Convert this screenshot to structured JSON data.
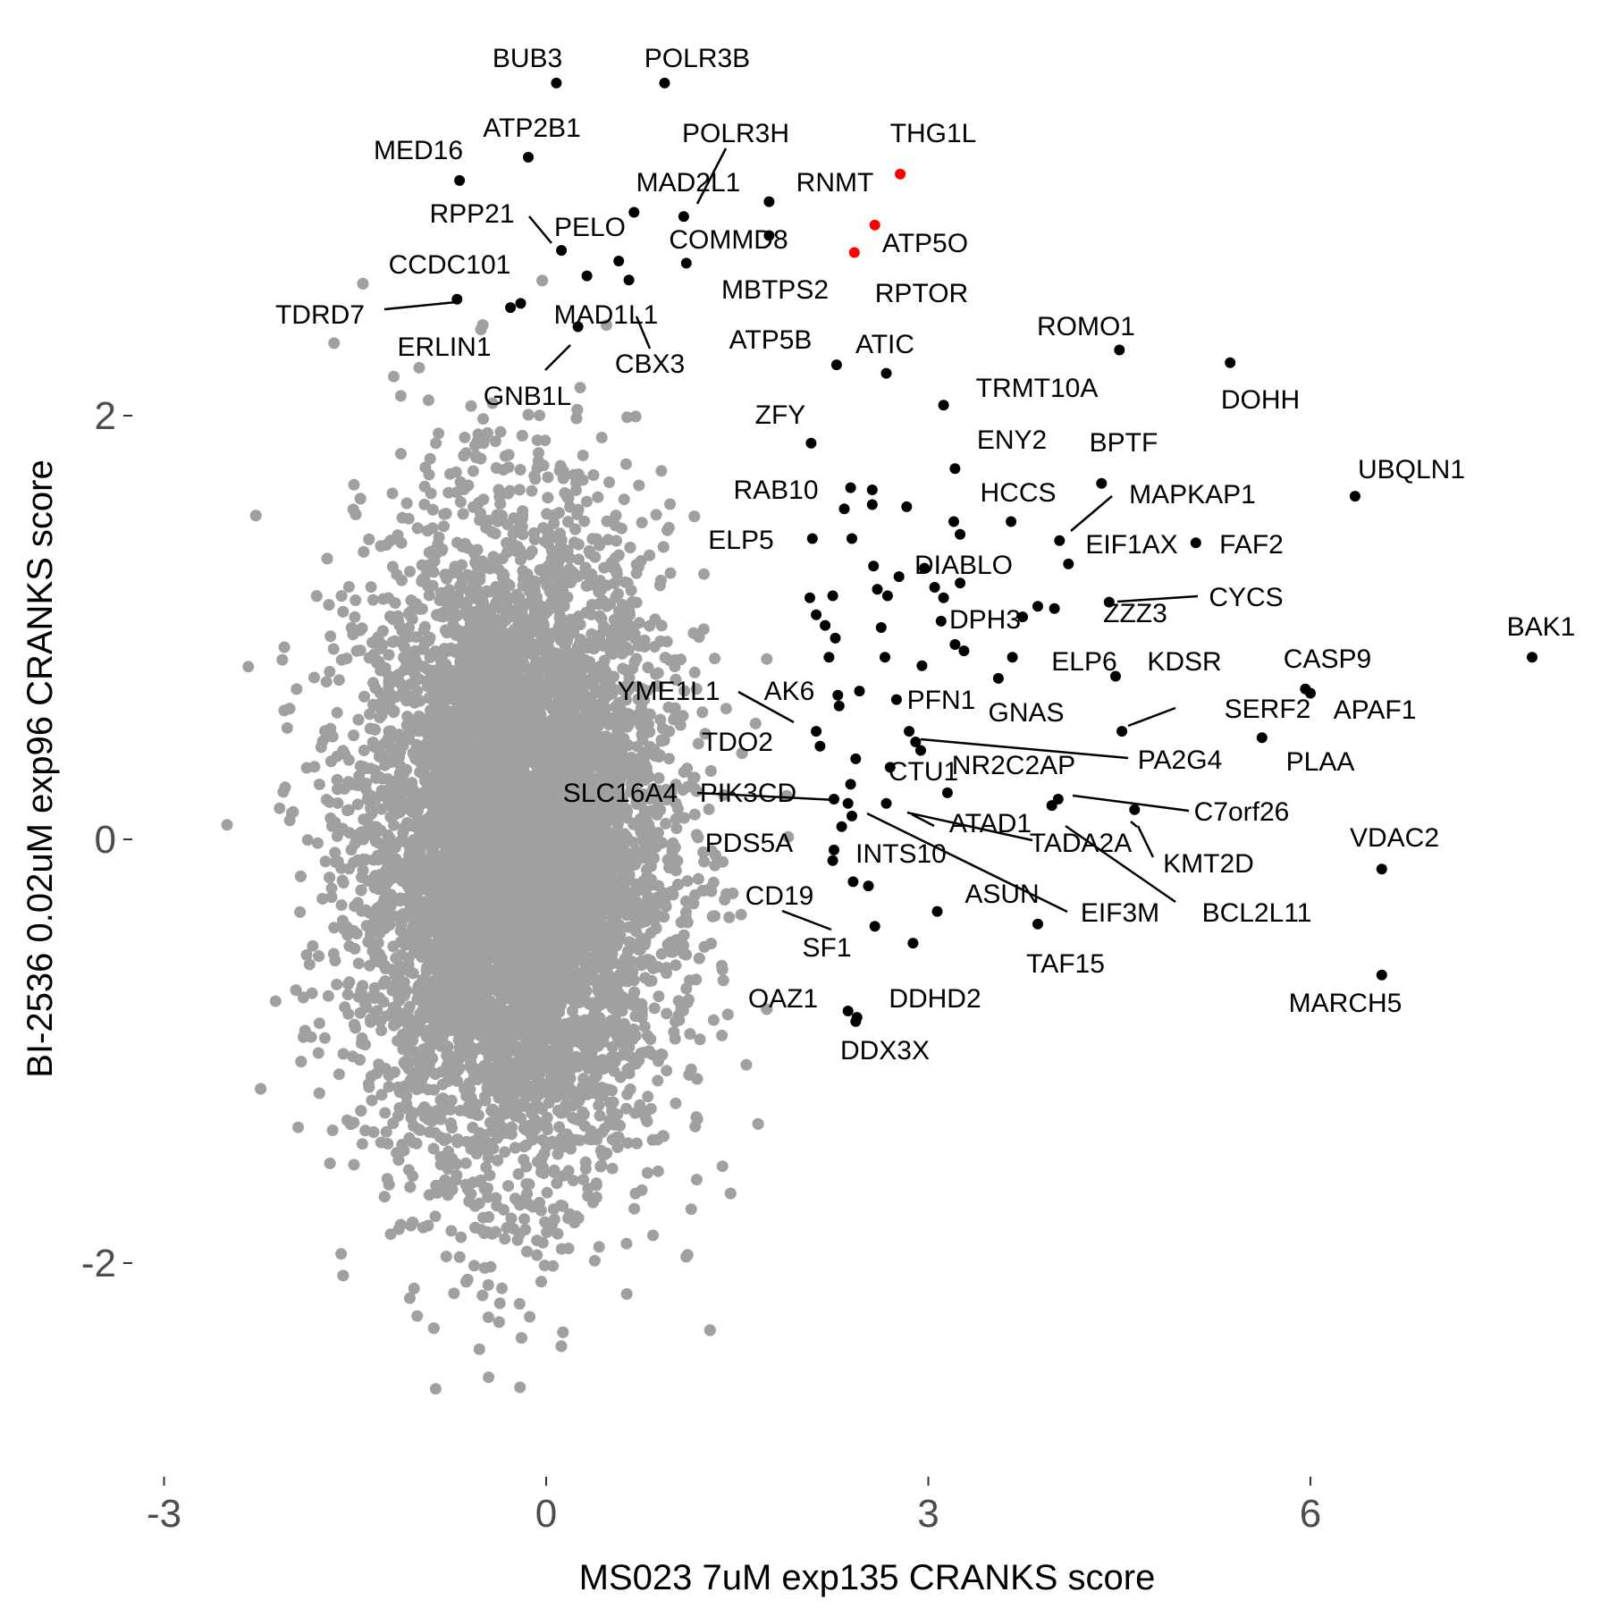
{
  "chart_data": {
    "type": "scatter",
    "xlabel": "MS023 7uM exp135 CRANKS score",
    "ylabel": "BI-2536 0.02uM exp96 CRANKS score",
    "xlim": [
      -3.3,
      8.4
    ],
    "ylim": [
      -2.9,
      3.75
    ],
    "xticks": [
      -3,
      0,
      3,
      6
    ],
    "yticks": [
      -2,
      0,
      2
    ],
    "grid": false,
    "legend": "none",
    "background_color": "#ffffff",
    "colors": {
      "background_points": "#a0a0a0",
      "highlight": "#000000",
      "emphasis": "#ff0000"
    },
    "background_cloud": {
      "n": 9000,
      "x_mean": -0.25,
      "x_sd": 0.6,
      "y_mean": -0.05,
      "y_sd": 0.75
    },
    "series": [
      {
        "color": "#000000",
        "points": [
          {
            "label": "BUB3",
            "x": 0.08,
            "y": 3.57
          },
          {
            "label": "POLR3B",
            "x": 0.93,
            "y": 3.57
          },
          {
            "label": "ATP2B1",
            "x": -0.14,
            "y": 3.22
          },
          {
            "label": "MED16",
            "x": -0.68,
            "y": 3.11
          },
          {
            "label": "MAD2L1",
            "x": 0.69,
            "y": 2.96
          },
          {
            "label": "POLR3H",
            "x": 1.08,
            "y": 2.94
          },
          {
            "label": "RNMT",
            "x": 1.75,
            "y": 3.01
          },
          {
            "label": "COMMD8",
            "x": 1.75,
            "y": 2.85
          },
          {
            "label": "PELO",
            "x": 0.12,
            "y": 2.78
          },
          {
            "label": "MBTPS2",
            "x": 1.1,
            "y": 2.72
          },
          {
            "label": "CCDC101",
            "x": 0.32,
            "y": 2.66
          },
          {
            "label": "TDRD7",
            "x": -0.7,
            "y": 2.55
          },
          {
            "label": "ERLIN1",
            "x": -0.28,
            "y": 2.51
          },
          {
            "label": "GNB1L",
            "x": 0.25,
            "y": 2.42
          },
          {
            "label": "MAD1L1",
            "x": -0.2,
            "y": 2.53
          },
          {
            "label": "CBX3",
            "x": 0.57,
            "y": 2.73
          },
          {
            "label": "",
            "x": 0.65,
            "y": 2.64
          },
          {
            "label": "ATP5B",
            "x": 2.28,
            "y": 2.24
          },
          {
            "label": "ATIC",
            "x": 2.67,
            "y": 2.2
          },
          {
            "label": "ROMO1",
            "x": 4.5,
            "y": 2.31
          },
          {
            "label": "DOHH",
            "x": 5.37,
            "y": 2.25
          },
          {
            "label": "TRMT10A",
            "x": 3.12,
            "y": 2.05
          },
          {
            "label": "ZFY",
            "x": 2.08,
            "y": 1.87
          },
          {
            "label": "ENY2",
            "x": 3.21,
            "y": 1.75
          },
          {
            "label": "BPTF",
            "x": 4.36,
            "y": 1.68
          },
          {
            "label": "UBQLN1",
            "x": 6.35,
            "y": 1.62
          },
          {
            "label": "RAB10",
            "x": 2.39,
            "y": 1.66
          },
          {
            "label": "",
            "x": 2.56,
            "y": 1.65
          },
          {
            "label": "",
            "x": 2.34,
            "y": 1.56
          },
          {
            "label": "",
            "x": 2.56,
            "y": 1.58
          },
          {
            "label": "",
            "x": 2.83,
            "y": 1.57
          },
          {
            "label": "HCCS",
            "x": 3.65,
            "y": 1.5
          },
          {
            "label": "",
            "x": 3.2,
            "y": 1.5
          },
          {
            "label": "",
            "x": 3.25,
            "y": 1.44
          },
          {
            "label": "ELP5",
            "x": 2.09,
            "y": 1.42
          },
          {
            "label": "",
            "x": 2.4,
            "y": 1.42
          },
          {
            "label": "MAPKAP1",
            "x": 4.03,
            "y": 1.41
          },
          {
            "label": "FAF2",
            "x": 5.1,
            "y": 1.4
          },
          {
            "label": "EIF1AX",
            "x": 4.1,
            "y": 1.3
          },
          {
            "label": "DIABLO",
            "x": 2.57,
            "y": 1.29
          },
          {
            "label": "",
            "x": 2.97,
            "y": 1.28
          },
          {
            "label": "",
            "x": 2.77,
            "y": 1.24
          },
          {
            "label": "",
            "x": 2.6,
            "y": 1.18
          },
          {
            "label": "",
            "x": 2.68,
            "y": 1.15
          },
          {
            "label": "",
            "x": 3.05,
            "y": 1.19
          },
          {
            "label": "",
            "x": 3.12,
            "y": 1.14
          },
          {
            "label": "",
            "x": 3.25,
            "y": 1.21
          },
          {
            "label": "",
            "x": 2.07,
            "y": 1.14
          },
          {
            "label": "",
            "x": 2.25,
            "y": 1.15
          },
          {
            "label": "ZZZ3",
            "x": 4.42,
            "y": 1.12
          },
          {
            "label": "CYCS",
            "x": 3.86,
            "y": 1.1
          },
          {
            "label": "",
            "x": 3.99,
            "y": 1.09
          },
          {
            "label": "DPH3",
            "x": 3.74,
            "y": 1.05
          },
          {
            "label": "",
            "x": 3.1,
            "y": 1.03
          },
          {
            "label": "",
            "x": 2.12,
            "y": 1.06
          },
          {
            "label": "",
            "x": 2.19,
            "y": 1.01
          },
          {
            "label": "",
            "x": 2.63,
            "y": 1.0
          },
          {
            "label": "",
            "x": 2.27,
            "y": 0.95
          },
          {
            "label": "",
            "x": 3.21,
            "y": 0.92
          },
          {
            "label": "",
            "x": 3.28,
            "y": 0.89
          },
          {
            "label": "",
            "x": 2.22,
            "y": 0.86
          },
          {
            "label": "",
            "x": 2.66,
            "y": 0.86
          },
          {
            "label": "ELP6",
            "x": 3.66,
            "y": 0.86
          },
          {
            "label": "",
            "x": 2.95,
            "y": 0.82
          },
          {
            "label": "KDSR",
            "x": 4.47,
            "y": 0.77
          },
          {
            "label": "",
            "x": 3.55,
            "y": 0.76
          },
          {
            "label": "",
            "x": 2.46,
            "y": 0.7
          },
          {
            "label": "CASP9",
            "x": 5.96,
            "y": 0.71
          },
          {
            "label": "APAF1",
            "x": 6.0,
            "y": 0.69
          },
          {
            "label": "BAK1",
            "x": 7.74,
            "y": 0.86
          },
          {
            "label": "",
            "x": 2.29,
            "y": 0.68
          },
          {
            "label": "PFN1",
            "x": 2.75,
            "y": 0.66
          },
          {
            "label": "",
            "x": 2.3,
            "y": 0.63
          },
          {
            "label": "GNAS",
            "x": 2.85,
            "y": 0.51
          },
          {
            "label": "SERF2",
            "x": 4.52,
            "y": 0.51
          },
          {
            "label": "PLAA",
            "x": 5.62,
            "y": 0.48
          },
          {
            "label": "AK6",
            "x": 2.12,
            "y": 0.51
          },
          {
            "label": "YME1L1",
            "x": 2.15,
            "y": 0.44
          },
          {
            "label": "",
            "x": 2.9,
            "y": 0.46
          },
          {
            "label": "PA2G4",
            "x": 2.94,
            "y": 0.42
          },
          {
            "label": "TDO2",
            "x": 2.43,
            "y": 0.38
          },
          {
            "label": "CTU1",
            "x": 2.7,
            "y": 0.34
          },
          {
            "label": "",
            "x": 2.39,
            "y": 0.26
          },
          {
            "label": "NR2C2AP",
            "x": 3.15,
            "y": 0.22
          },
          {
            "label": "PIK3CD",
            "x": 2.26,
            "y": 0.19
          },
          {
            "label": "SLC16A4",
            "x": 2.37,
            "y": 0.17
          },
          {
            "label": "",
            "x": 2.67,
            "y": 0.17
          },
          {
            "label": "ATAD1",
            "x": 4.02,
            "y": 0.19
          },
          {
            "label": "TADA2A",
            "x": 3.97,
            "y": 0.16
          },
          {
            "label": "C7orf26",
            "x": 4.62,
            "y": 0.14
          },
          {
            "label": "",
            "x": 2.4,
            "y": 0.11
          },
          {
            "label": "KMT2D",
            "x": 2.32,
            "y": 0.06
          },
          {
            "label": "PDS5A",
            "x": 2.26,
            "y": -0.05
          },
          {
            "label": "INTS10",
            "x": 2.25,
            "y": -0.1
          },
          {
            "label": "BCL2L11",
            "x": 2.41,
            "y": -0.2
          },
          {
            "label": "CD19",
            "x": 2.53,
            "y": -0.22
          },
          {
            "label": "VDAC2",
            "x": 6.56,
            "y": -0.14
          },
          {
            "label": "ASUN",
            "x": 3.07,
            "y": -0.34
          },
          {
            "label": "EIF3M",
            "x": 3.86,
            "y": -0.4
          },
          {
            "label": "SF1",
            "x": 2.58,
            "y": -0.41
          },
          {
            "label": "TAF15",
            "x": 2.88,
            "y": -0.49
          },
          {
            "label": "MARCH5",
            "x": 6.56,
            "y": -0.64
          },
          {
            "label": "OAZ1",
            "x": 2.37,
            "y": -0.81
          },
          {
            "label": "DDHD2",
            "x": 2.44,
            "y": -0.84
          },
          {
            "label": "DDX3X",
            "x": 2.43,
            "y": -0.86
          }
        ]
      },
      {
        "color": "#ff0000",
        "points": [
          {
            "label": "THG1L",
            "x": 2.78,
            "y": 3.14
          },
          {
            "label": "",
            "x": 2.58,
            "y": 2.9
          },
          {
            "label": "ATP5O",
            "x": 2.42,
            "y": 2.77
          }
        ]
      }
    ],
    "extra_labels": [
      {
        "label": "RPP21",
        "x": -0.59,
        "y": 2.87
      },
      {
        "label": "RPTOR",
        "x": 2.9,
        "y": 2.6
      }
    ]
  }
}
